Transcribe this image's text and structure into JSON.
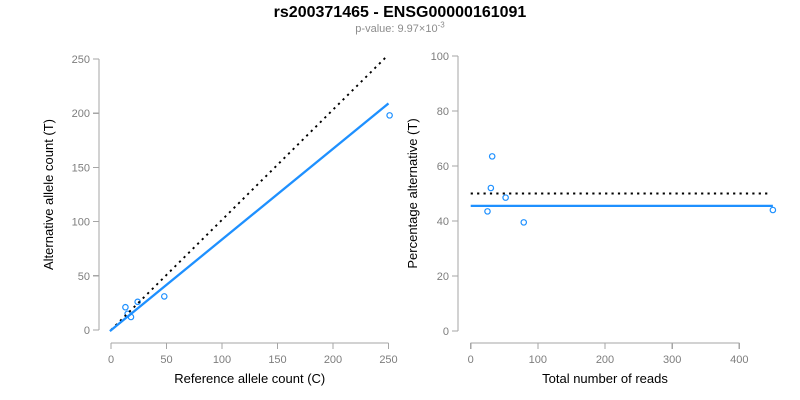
{
  "header": {
    "title": "rs200371465 - ENSG00000161091",
    "subtitle_base": "p-value: 9.97×10",
    "subtitle_exponent": "-3"
  },
  "colors": {
    "accent": "#1E90FF",
    "black": "#000000",
    "axis_line": "#A6A6A6",
    "tick_text": "#7D7D7D",
    "axis_title_text": "#000000",
    "subtitle_text": "#8C8C8C"
  },
  "chart_data": [
    {
      "type": "scatter",
      "title": "",
      "xlabel": "Reference allele count (C)",
      "ylabel": "Alternative allele count (T)",
      "xlim": [
        0,
        250
      ],
      "ylim": [
        0,
        250
      ],
      "xticks": [
        0,
        50,
        100,
        150,
        200,
        250
      ],
      "yticks": [
        0,
        50,
        100,
        150,
        200,
        250
      ],
      "grid": false,
      "legend": "none",
      "points": [
        [
          13,
          21
        ],
        [
          15,
          15
        ],
        [
          18,
          12
        ],
        [
          24,
          26
        ],
        [
          48,
          31
        ],
        [
          251,
          198
        ]
      ],
      "lines": [
        {
          "name": "identity-line",
          "style": "dotted",
          "color": "#000000",
          "x1": 0,
          "y1": 0,
          "x2": 248,
          "y2": 252
        },
        {
          "name": "regression-line",
          "style": "solid",
          "color": "#1E90FF",
          "x1": -1,
          "y1": -1,
          "x2": 250,
          "y2": 209
        }
      ]
    },
    {
      "type": "scatter",
      "title": "",
      "xlabel": "Total number of reads",
      "ylabel": "Percentage alternative (T)",
      "xlim": [
        0,
        400
      ],
      "ylim": [
        0,
        100
      ],
      "xticks": [
        0,
        100,
        200,
        300,
        400
      ],
      "yticks": [
        0,
        20,
        40,
        60,
        80,
        100
      ],
      "grid": false,
      "legend": "none",
      "points": [
        [
          25,
          43.5
        ],
        [
          30,
          52
        ],
        [
          32,
          63.5
        ],
        [
          52,
          48.5
        ],
        [
          79,
          39.5
        ],
        [
          450,
          44
        ]
      ],
      "lines": [
        {
          "name": "expected-percentage-line",
          "style": "dotted",
          "color": "#000000",
          "x1": 0,
          "y1": 50,
          "x2": 443,
          "y2": 50
        },
        {
          "name": "mean-percentage-line",
          "style": "solid",
          "color": "#1E90FF",
          "x1": 0,
          "y1": 45.5,
          "x2": 450,
          "y2": 45.5
        }
      ]
    }
  ]
}
